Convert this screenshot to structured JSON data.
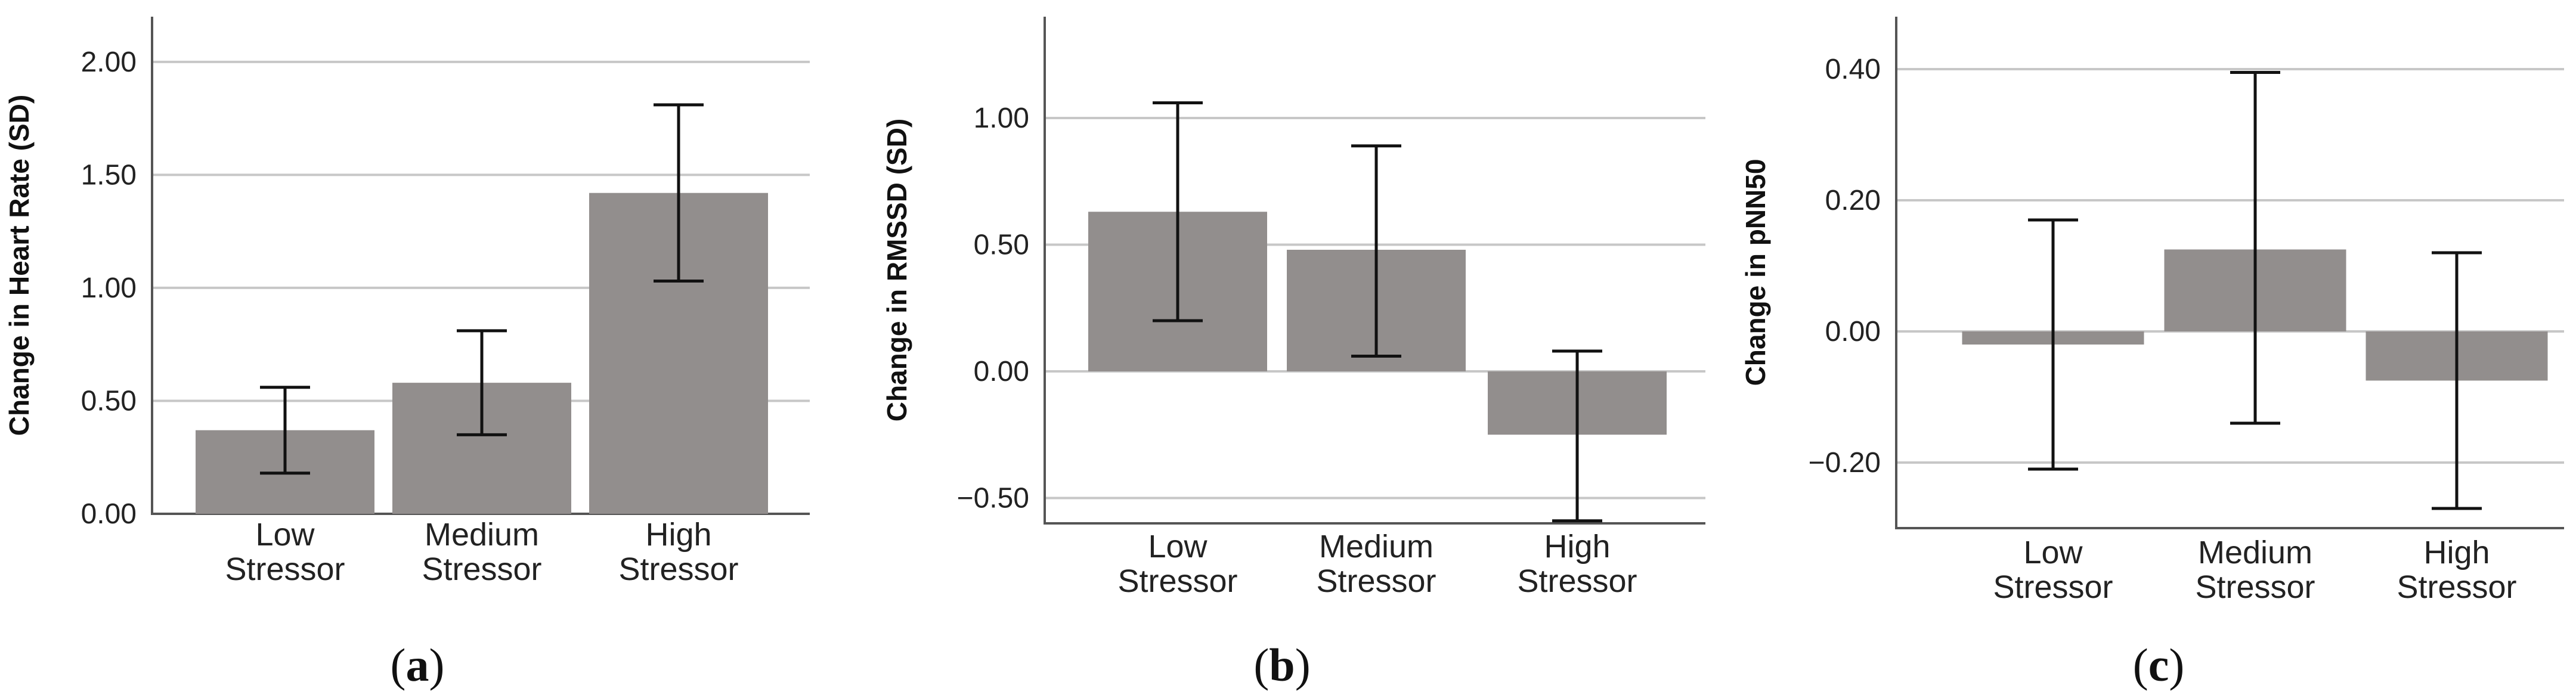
{
  "colors": {
    "bar": "#928e8d",
    "grid": "#c7c7c7",
    "axis": "#555555",
    "error": "#111111"
  },
  "chart_data": [
    {
      "type": "bar",
      "panel_label": "(a)",
      "ylabel": "Change in Heart Rate (SD)",
      "categories": [
        [
          "Low",
          "Stressor"
        ],
        [
          "Medium",
          "Stressor"
        ],
        [
          "High",
          "Stressor"
        ]
      ],
      "values": [
        0.37,
        0.58,
        1.42
      ],
      "error_low": [
        0.18,
        0.35,
        1.03
      ],
      "error_high": [
        0.56,
        0.81,
        1.81
      ],
      "ylim": [
        0,
        2.2
      ],
      "ticks": [
        0,
        0.5,
        1.0,
        1.5,
        2.0
      ],
      "tick_labels": [
        "0.00",
        "0.50",
        "1.00",
        "1.50",
        "2.00"
      ],
      "grid": true
    },
    {
      "type": "bar",
      "panel_label": "(b)",
      "ylabel": "Change in RMSSD (SD)",
      "categories": [
        [
          "Low",
          "Stressor"
        ],
        [
          "Medium",
          "Stressor"
        ],
        [
          "High",
          "Stressor"
        ]
      ],
      "values": [
        0.63,
        0.48,
        -0.25
      ],
      "error_low": [
        0.2,
        0.06,
        -0.59
      ],
      "error_high": [
        1.06,
        0.89,
        0.08
      ],
      "ylim": [
        -0.6,
        1.4
      ],
      "ticks": [
        -0.5,
        0,
        0.5,
        1.0
      ],
      "tick_labels": [
        "−0.50",
        "0.00",
        "0.50",
        "1.00"
      ],
      "grid": true
    },
    {
      "type": "bar",
      "panel_label": "(c)",
      "ylabel": "Change in pNN50",
      "categories": [
        [
          "Low",
          "Stressor"
        ],
        [
          "Medium",
          "Stressor"
        ],
        [
          "High",
          "Stressor"
        ]
      ],
      "values": [
        -0.02,
        0.125,
        -0.075
      ],
      "error_low": [
        -0.21,
        -0.14,
        -0.27
      ],
      "error_high": [
        0.17,
        0.395,
        0.12
      ],
      "ylim": [
        -0.3,
        0.48
      ],
      "ticks": [
        -0.2,
        0,
        0.2,
        0.4
      ],
      "tick_labels": [
        "−0.20",
        "0.00",
        "0.20",
        "0.40"
      ],
      "grid": true
    }
  ]
}
